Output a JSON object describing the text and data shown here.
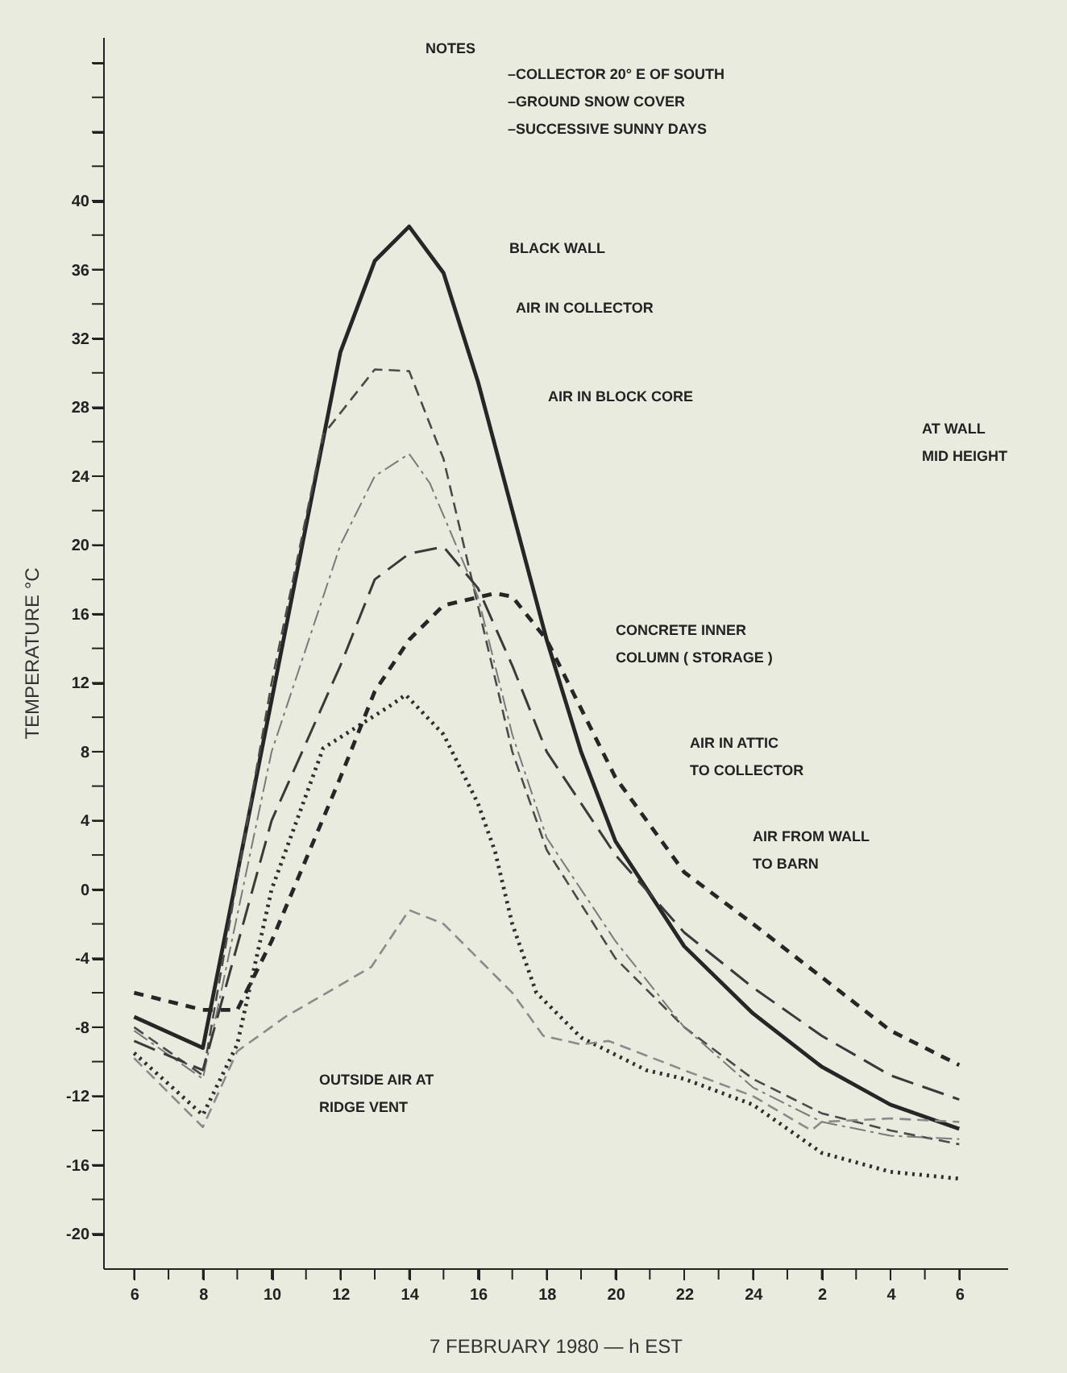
{
  "chart_data": {
    "type": "line",
    "xlabel": "7 FEBRUARY 1980 — h EST",
    "ylabel": "TEMPERATURE  °C",
    "xlim": [
      "1980-02-07T05:06",
      "1980-02-08T07:24"
    ],
    "ylim": [
      -22,
      49.5
    ],
    "xticks": [
      {
        "value": "1980-02-07T06:00",
        "label": "6"
      },
      {
        "value": "1980-02-07T07:00",
        "label": null
      },
      {
        "value": "1980-02-07T08:00",
        "label": "8"
      },
      {
        "value": "1980-02-07T09:00",
        "label": null
      },
      {
        "value": "1980-02-07T10:00",
        "label": "10"
      },
      {
        "value": "1980-02-07T11:00",
        "label": null
      },
      {
        "value": "1980-02-07T12:00",
        "label": "12"
      },
      {
        "value": "1980-02-07T13:00",
        "label": null
      },
      {
        "value": "1980-02-07T14:00",
        "label": "14"
      },
      {
        "value": "1980-02-07T15:00",
        "label": null
      },
      {
        "value": "1980-02-07T16:00",
        "label": "16"
      },
      {
        "value": "1980-02-07T17:00",
        "label": null
      },
      {
        "value": "1980-02-07T18:00",
        "label": "18"
      },
      {
        "value": "1980-02-07T19:00",
        "label": null
      },
      {
        "value": "1980-02-07T20:00",
        "label": "20"
      },
      {
        "value": "1980-02-07T21:00",
        "label": null
      },
      {
        "value": "1980-02-07T22:00",
        "label": "22"
      },
      {
        "value": "1980-02-07T23:00",
        "label": null
      },
      {
        "value": "1980-02-08T00:00",
        "label": "24"
      },
      {
        "value": "1980-02-08T01:00",
        "label": null
      },
      {
        "value": "1980-02-08T02:00",
        "label": "2"
      },
      {
        "value": "1980-02-08T03:00",
        "label": null
      },
      {
        "value": "1980-02-08T04:00",
        "label": "4"
      },
      {
        "value": "1980-02-08T05:00",
        "label": null
      },
      {
        "value": "1980-02-08T06:00",
        "label": "6"
      }
    ],
    "yticks": [
      -20,
      {
        "value": -18,
        "label": null
      },
      -16,
      {
        "value": -14,
        "label": null
      },
      -12,
      {
        "value": -10,
        "label": null
      },
      -8,
      {
        "value": -6,
        "label": null
      },
      -4,
      {
        "value": -2,
        "label": null
      },
      0,
      {
        "value": 2,
        "label": null
      },
      4,
      {
        "value": 6,
        "label": null
      },
      8,
      {
        "value": 10,
        "label": null
      },
      12,
      {
        "value": 14,
        "label": null
      },
      16,
      {
        "value": 18,
        "label": null
      },
      20,
      {
        "value": 22,
        "label": null
      },
      24,
      {
        "value": 26,
        "label": null
      },
      28,
      {
        "value": 30,
        "label": null
      },
      32,
      {
        "value": 34,
        "label": null
      },
      36,
      {
        "value": 38,
        "label": null
      },
      40,
      {
        "value": 42,
        "label": null
      },
      {
        "value": 44,
        "label": null
      },
      {
        "value": 46,
        "label": null
      },
      {
        "value": 48,
        "label": null
      }
    ],
    "grid": false,
    "series": [
      {
        "color": "#262626",
        "line_style": "solid",
        "x": [
          "1980-02-07T06:00",
          "1980-02-07T08:00",
          "1980-02-07T10:00",
          "1980-02-07T12:00",
          "1980-02-07T13:00",
          "1980-02-07T14:00",
          "1980-02-07T15:00",
          "1980-02-07T16:00",
          "1980-02-07T17:00",
          "1980-02-07T18:00",
          "1980-02-07T19:00",
          "1980-02-07T20:00",
          "1980-02-07T22:00",
          "1980-02-08T00:00",
          "1980-02-08T02:00",
          "1980-02-08T04:00",
          "1980-02-08T06:00"
        ],
        "values": [
          -7.4,
          -9.2,
          11,
          31.2,
          36.5,
          38.5,
          35.8,
          29.5,
          22,
          14.5,
          8,
          2.8,
          -3.3,
          -7.2,
          -10.3,
          -12.5,
          -13.9
        ]
      },
      {
        "color": "#4a4a4a",
        "line_style": "dashed",
        "x": [
          "1980-02-07T06:00",
          "1980-02-07T08:00",
          "1980-02-07T10:00",
          "1980-02-07T11:30",
          "1980-02-07T13:00",
          "1980-02-07T14:00",
          "1980-02-07T15:00",
          "1980-02-07T16:00",
          "1980-02-07T17:00",
          "1980-02-07T18:00",
          "1980-02-07T20:00",
          "1980-02-07T22:00",
          "1980-02-08T00:00",
          "1980-02-08T02:00",
          "1980-02-08T04:00",
          "1980-02-08T06:00"
        ],
        "values": [
          -8,
          -10.8,
          12,
          26.4,
          30.2,
          30.1,
          25,
          16.5,
          8,
          2.3,
          -4,
          -8,
          -11,
          -13,
          -14,
          -14.8
        ]
      },
      {
        "color": "#7a7a7a",
        "line_style": "dashed",
        "x": [
          "1980-02-07T06:00",
          "1980-02-07T08:00",
          "1980-02-07T10:00",
          "1980-02-07T12:00",
          "1980-02-07T13:00",
          "1980-02-07T14:00",
          "1980-02-07T14:36",
          "1980-02-07T16:00",
          "1980-02-07T17:00",
          "1980-02-07T18:00",
          "1980-02-07T20:00",
          "1980-02-07T22:00",
          "1980-02-08T00:00",
          "1980-02-08T02:00",
          "1980-02-08T04:00",
          "1980-02-08T06:00"
        ],
        "values": [
          -8.2,
          -11,
          8,
          20,
          24,
          25.3,
          23.6,
          17,
          9,
          3,
          -3,
          -8,
          -11.5,
          -13.5,
          -14.3,
          -14.5
        ]
      },
      {
        "color": "#3a3a3a",
        "line_style": "dashed",
        "x": [
          "1980-02-07T06:00",
          "1980-02-07T08:00",
          "1980-02-07T10:00",
          "1980-02-07T12:00",
          "1980-02-07T13:00",
          "1980-02-07T14:00",
          "1980-02-07T15:00",
          "1980-02-07T16:00",
          "1980-02-07T17:00",
          "1980-02-07T18:00",
          "1980-02-07T20:00",
          "1980-02-07T22:00",
          "1980-02-08T00:00",
          "1980-02-08T02:00",
          "1980-02-08T04:00",
          "1980-02-08T06:00"
        ],
        "values": [
          -8.8,
          -10.5,
          4,
          13,
          18,
          19.5,
          19.9,
          17.5,
          13,
          8,
          2,
          -2.5,
          -5.7,
          -8.5,
          -10.8,
          -12.2
        ]
      },
      {
        "color": "#2e2e2e",
        "line_style": "dotted",
        "x": [
          "1980-02-07T06:00",
          "1980-02-07T08:00",
          "1980-02-07T09:00",
          "1980-02-07T10:00",
          "1980-02-07T11:30",
          "1980-02-07T13:24",
          "1980-02-07T13:54",
          "1980-02-07T15:00",
          "1980-02-07T16:00",
          "1980-02-07T16:30",
          "1980-02-07T17:00",
          "1980-02-07T17:42",
          "1980-02-07T19:00",
          "1980-02-07T20:54",
          "1980-02-07T22:00",
          "1980-02-08T00:00",
          "1980-02-08T02:00",
          "1980-02-08T04:00",
          "1980-02-08T06:00"
        ],
        "values": [
          -9.5,
          -13.1,
          -9,
          0,
          8.2,
          10.6,
          11.3,
          9,
          5,
          2.2,
          -2,
          -6,
          -8.6,
          -10.5,
          -11,
          -12.5,
          -15.3,
          -16.4,
          -16.8
        ]
      },
      {
        "color": "#262626",
        "line_style": "dashed",
        "x": [
          "1980-02-07T06:00",
          "1980-02-07T08:00",
          "1980-02-07T09:00",
          "1980-02-07T10:00",
          "1980-02-07T12:00",
          "1980-02-07T13:00",
          "1980-02-07T14:00",
          "1980-02-07T15:00",
          "1980-02-07T16:30",
          "1980-02-07T17:00",
          "1980-02-07T18:00",
          "1980-02-07T20:00",
          "1980-02-07T22:00",
          "1980-02-08T00:00",
          "1980-02-08T02:00",
          "1980-02-08T04:00",
          "1980-02-08T06:00"
        ],
        "values": [
          -6,
          -7,
          -7,
          -3,
          6.5,
          11.5,
          14.5,
          16.5,
          17.2,
          17,
          14.5,
          6.5,
          1,
          -2,
          -5.1,
          -8.2,
          -10.2
        ]
      },
      {
        "color": "#8a8a8a",
        "line_style": "dashed",
        "x": [
          "1980-02-07T06:00",
          "1980-02-07T08:00",
          "1980-02-07T09:00",
          "1980-02-07T10:24",
          "1980-02-07T12:54",
          "1980-02-07T14:00",
          "1980-02-07T15:00",
          "1980-02-07T16:00",
          "1980-02-07T17:00",
          "1980-02-07T17:54",
          "1980-02-07T19:00",
          "1980-02-07T19:48",
          "1980-02-07T22:00",
          "1980-02-08T00:00",
          "1980-02-08T01:42",
          "1980-02-08T02:00",
          "1980-02-08T04:00",
          "1980-02-08T06:00"
        ],
        "values": [
          -9.8,
          -13.8,
          -9.4,
          -7.4,
          -4.5,
          -1.2,
          -2,
          -4,
          -6,
          -8.5,
          -9,
          -8.8,
          -10.5,
          -12,
          -14,
          -13.5,
          -13.3,
          -13.5
        ]
      }
    ],
    "annotations": [
      "BLACK WALL",
      "AIR IN COLLECTOR",
      "AIR IN BLOCK CORE",
      "AT WALL\nMID HEIGHT",
      "CONCRETE INNER\nCOLUMN ( STORAGE )",
      "AIR IN ATTIC\nTO COLLECTOR",
      "AIR FROM WALL\nTO BARN",
      "OUTSIDE AIR AT\nRIDGE VENT",
      "NOTES",
      "–COLLECTOR 20° E  OF SOUTH\n–GROUND SNOW COVER\n–SUCCESSIVE SUNNY DAYS"
    ]
  }
}
